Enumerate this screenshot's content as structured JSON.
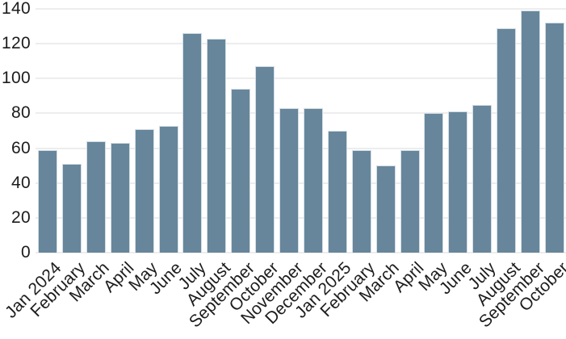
{
  "chart_data": {
    "type": "bar",
    "title": "",
    "xlabel": "",
    "ylabel": "",
    "categories": [
      "Jan 2024",
      "February",
      "March",
      "April",
      "May",
      "June",
      "July",
      "August",
      "September",
      "October",
      "November",
      "December",
      "Jan 2025",
      "February",
      "March",
      "April",
      "May",
      "June",
      "July",
      "August",
      "September",
      "October"
    ],
    "values": [
      59,
      51,
      64,
      63,
      71,
      73,
      126,
      123,
      94,
      107,
      83,
      83,
      70,
      59,
      50,
      59,
      80,
      81,
      85,
      129,
      139,
      132
    ],
    "ylim": [
      0,
      140
    ],
    "ytick_step": 20,
    "yticks": [
      0,
      20,
      40,
      60,
      80,
      100,
      120,
      140
    ],
    "grid": true,
    "legend": false,
    "x_tick_rotation_deg": 45,
    "colors": {
      "bar": "#67869B",
      "bar_edge": "#dfe8ee",
      "gridline": "#ededed",
      "tick_text": "#1c1c1c",
      "background": "#ffffff"
    }
  }
}
